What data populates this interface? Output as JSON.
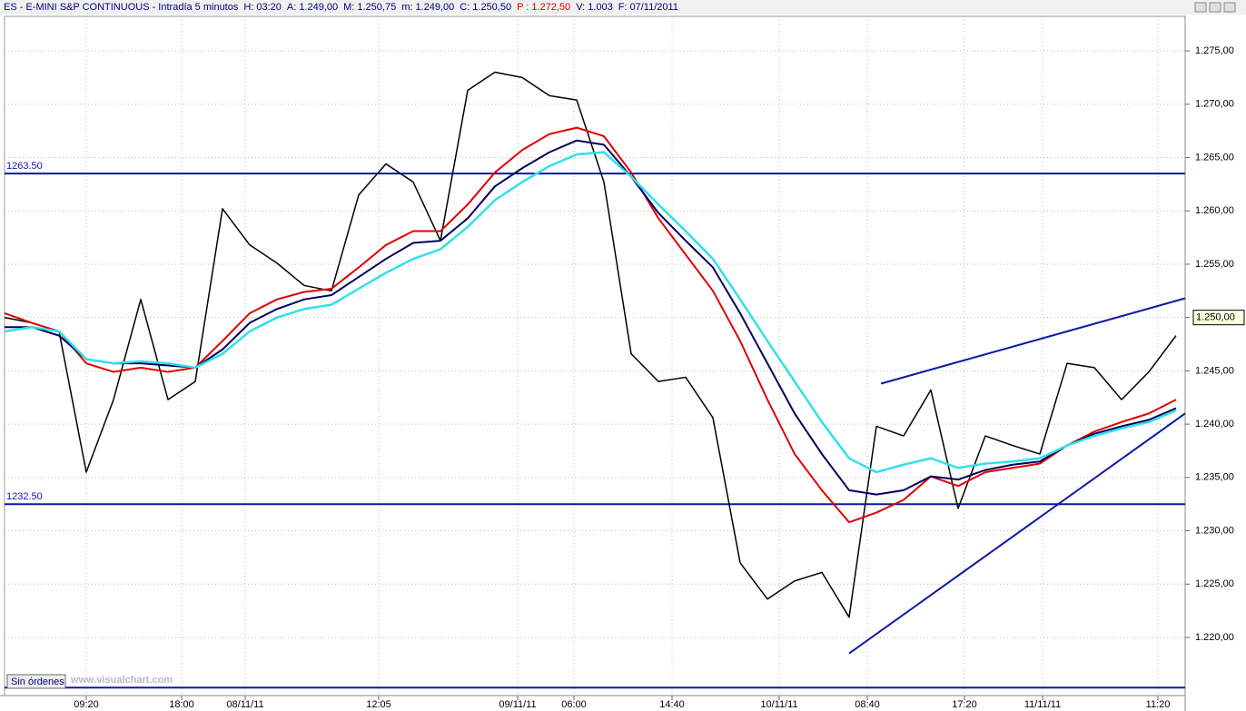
{
  "header": {
    "symbol": "ES - E-MINI S&P CONTINUOUS - Intradía 5 minutos",
    "fields": [
      {
        "key": "H:",
        "value": "03:20",
        "color": "#000080"
      },
      {
        "key": "A:",
        "value": "1.249,00",
        "color": "#000080"
      },
      {
        "key": "M:",
        "value": "1.250,75",
        "color": "#000080"
      },
      {
        "key": "m:",
        "value": "1.249,00",
        "color": "#000080"
      },
      {
        "key": "C:",
        "value": "1.250,50",
        "color": "#000080"
      },
      {
        "key": "P :",
        "value": "1.272,50",
        "color": "#e00000"
      },
      {
        "key": "V:",
        "value": "1.003",
        "color": "#000080"
      },
      {
        "key": "F:",
        "value": "07/11/2011",
        "color": "#000080"
      }
    ]
  },
  "chart_data": {
    "type": "line",
    "x": [
      0,
      30,
      60,
      90,
      120,
      150,
      180,
      210,
      240,
      270,
      300,
      330,
      360,
      390,
      420,
      450,
      480,
      510,
      540,
      570,
      600,
      630,
      660,
      690,
      720,
      750,
      780,
      810,
      840,
      870,
      900,
      930,
      960,
      990,
      1020,
      1050,
      1080,
      1110,
      1140,
      1170,
      1200,
      1230,
      1260,
      1290
    ],
    "series": [
      {
        "name": "close",
        "color": "#000000",
        "width": 1.5,
        "values": [
          1250.0,
          1249.5,
          1248.7,
          1235.5,
          1242.3,
          1251.7,
          1242.3,
          1244.0,
          1260.2,
          1256.8,
          1255.1,
          1253.0,
          1252.5,
          1261.5,
          1264.4,
          1262.7,
          1257.2,
          1271.3,
          1273.0,
          1272.5,
          1270.8,
          1270.4,
          1262.7,
          1246.6,
          1244.0,
          1244.4,
          1240.6,
          1227.0,
          1223.6,
          1225.3,
          1226.1,
          1221.9,
          1239.8,
          1238.9,
          1243.2,
          1232.1,
          1238.9,
          1238.0,
          1237.2,
          1245.7,
          1245.3,
          1242.3,
          1244.9,
          1248.3
        ]
      },
      {
        "name": "ma-red",
        "color": "#e00000",
        "width": 2,
        "values": [
          1250.4,
          1249.5,
          1248.7,
          1245.7,
          1244.9,
          1245.3,
          1244.9,
          1245.3,
          1247.8,
          1250.4,
          1251.7,
          1252.4,
          1252.7,
          1254.7,
          1256.8,
          1258.1,
          1258.1,
          1260.6,
          1263.6,
          1265.7,
          1267.2,
          1267.8,
          1267.0,
          1263.6,
          1259.3,
          1255.9,
          1252.5,
          1247.8,
          1242.3,
          1237.2,
          1233.8,
          1230.8,
          1231.7,
          1232.9,
          1235.1,
          1234.2,
          1235.5,
          1235.9,
          1236.3,
          1238.0,
          1239.3,
          1240.2,
          1241.0,
          1242.3
        ]
      },
      {
        "name": "ma-navy",
        "color": "#000060",
        "width": 2,
        "values": [
          1249.1,
          1249.1,
          1248.3,
          1246.1,
          1245.7,
          1245.7,
          1245.5,
          1245.3,
          1247.0,
          1249.5,
          1250.8,
          1251.7,
          1252.1,
          1253.8,
          1255.5,
          1257.0,
          1257.2,
          1259.3,
          1262.3,
          1264.0,
          1265.5,
          1266.6,
          1266.2,
          1263.2,
          1259.8,
          1257.2,
          1254.7,
          1250.4,
          1245.7,
          1241.0,
          1237.2,
          1233.8,
          1233.4,
          1233.8,
          1235.1,
          1234.8,
          1235.7,
          1236.2,
          1236.5,
          1238.0,
          1239.1,
          1239.8,
          1240.4,
          1241.5
        ]
      },
      {
        "name": "ma-cyan",
        "color": "#30e0e8",
        "width": 2.5,
        "values": [
          1248.7,
          1249.1,
          1248.7,
          1246.1,
          1245.7,
          1245.9,
          1245.7,
          1245.3,
          1246.6,
          1248.7,
          1250.0,
          1250.8,
          1251.2,
          1252.7,
          1254.2,
          1255.5,
          1256.4,
          1258.5,
          1261.0,
          1262.7,
          1264.2,
          1265.3,
          1265.5,
          1263.2,
          1260.6,
          1258.1,
          1255.5,
          1251.7,
          1247.8,
          1244.0,
          1240.2,
          1236.8,
          1235.5,
          1236.2,
          1236.8,
          1235.9,
          1236.3,
          1236.5,
          1236.8,
          1238.0,
          1238.9,
          1239.6,
          1240.2,
          1241.3
        ]
      }
    ],
    "xlim": [
      0,
      1300
    ],
    "ylim": [
      1214.55,
      1278.24
    ],
    "xticks": [
      {
        "value": 90,
        "label": "09:20"
      },
      {
        "value": 195,
        "label": "18:00"
      },
      {
        "value": 265,
        "label": "08/11/11"
      },
      {
        "value": 412,
        "label": "12:05"
      },
      {
        "value": 565,
        "label": "09/11/11"
      },
      {
        "value": 627,
        "label": "06:00"
      },
      {
        "value": 735,
        "label": "14:40"
      },
      {
        "value": 853,
        "label": "10/11/11"
      },
      {
        "value": 950,
        "label": "08:40"
      },
      {
        "value": 1057,
        "label": "17:20"
      },
      {
        "value": 1143,
        "label": "11/11/11"
      },
      {
        "value": 1270,
        "label": "11:20"
      }
    ],
    "yticks": [
      {
        "value": 1220,
        "label": "1.220,00"
      },
      {
        "value": 1225,
        "label": "1.225,00"
      },
      {
        "value": 1230,
        "label": "1.230,00"
      },
      {
        "value": 1235,
        "label": "1.235,00"
      },
      {
        "value": 1240,
        "label": "1.240,00"
      },
      {
        "value": 1245,
        "label": "1.245,00"
      },
      {
        "value": 1250,
        "label": "1.250,00"
      },
      {
        "value": 1255,
        "label": "1.255,00"
      },
      {
        "value": 1260,
        "label": "1.260,00"
      },
      {
        "value": 1265,
        "label": "1.265,00"
      },
      {
        "value": 1270,
        "label": "1.270,00"
      },
      {
        "value": 1275,
        "label": "1.275,00"
      }
    ],
    "grid": true,
    "hlines": [
      {
        "value": 1263.5,
        "label": "1263.50"
      },
      {
        "value": 1232.5,
        "label": "1232.50"
      },
      {
        "value": 1215.3
      }
    ],
    "trendlines": [
      {
        "x": [
          965,
          1300
        ],
        "y": [
          1243.8,
          1251.8
        ]
      },
      {
        "x": [
          930,
          1300
        ],
        "y": [
          1218.5,
          1241.0
        ]
      }
    ],
    "line_color": "#0a1aa0",
    "last_price": {
      "value": 1250,
      "label": "1.250,00"
    },
    "annotations": [
      "Sin órdenes",
      "www.visualchart.com"
    ]
  }
}
